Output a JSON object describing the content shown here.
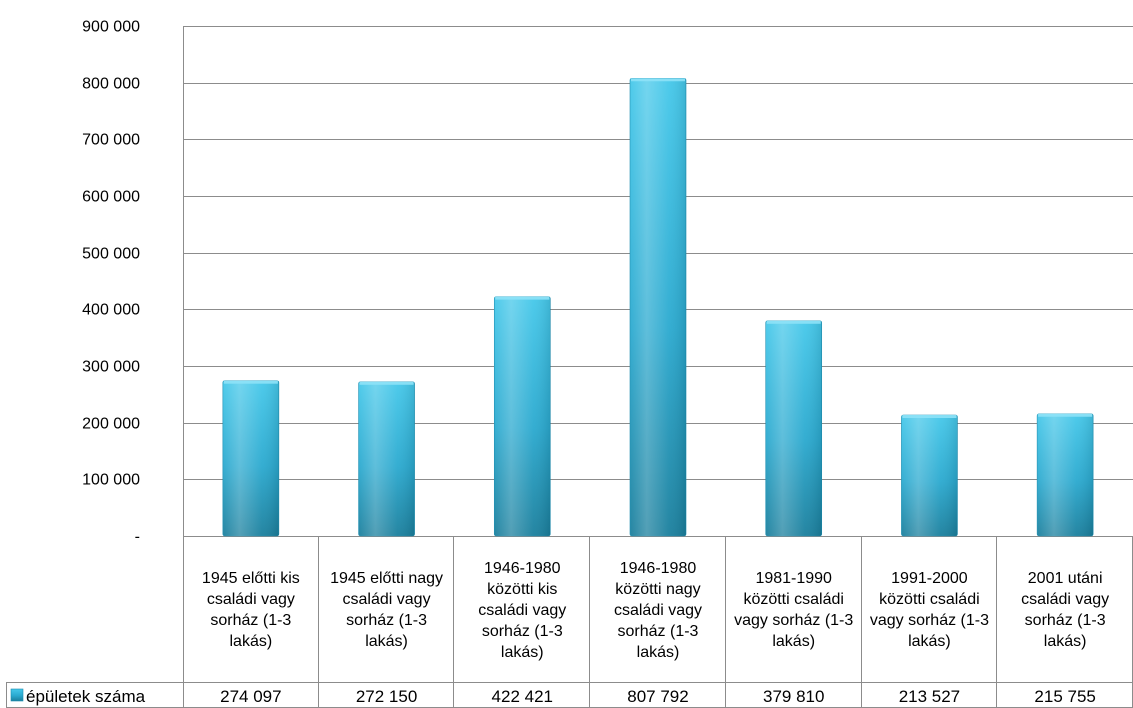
{
  "chart_data": {
    "type": "bar",
    "categories": [
      "1945 előtti kis családi vagy sorház (1-3 lakás)",
      "1945 előtti nagy családi vagy sorház (1-3 lakás)",
      "1946-1980 közötti kis családi vagy sorház (1-3 lakás)",
      "1946-1980 közötti nagy családi vagy sorház (1-3 lakás)",
      "1981-1990 közötti családi vagy sorház (1-3 lakás)",
      "1991-2000 közötti családi vagy sorház (1-3 lakás)",
      "2001 utáni családi vagy sorház (1-3 lakás)"
    ],
    "series": [
      {
        "name": "épületek száma",
        "values": [
          274097,
          272150,
          422421,
          807792,
          379810,
          213527,
          215755
        ],
        "value_labels": [
          "274 097",
          "272 150",
          "422 421",
          "807 792",
          "379 810",
          "213 527",
          "215 755"
        ]
      }
    ],
    "ylim": [
      0,
      900000
    ],
    "yticks": [
      0,
      100000,
      200000,
      300000,
      400000,
      500000,
      600000,
      700000,
      800000,
      900000
    ],
    "ytick_labels": [
      "-",
      "100 000",
      "200 000",
      "300 000",
      "400 000",
      "500 000",
      "600 000",
      "700 000",
      "800 000",
      "900 000"
    ],
    "grid": true,
    "legend": "data-table",
    "bar_color": "#2aa9cf",
    "title": "",
    "xlabel": "",
    "ylabel": ""
  }
}
